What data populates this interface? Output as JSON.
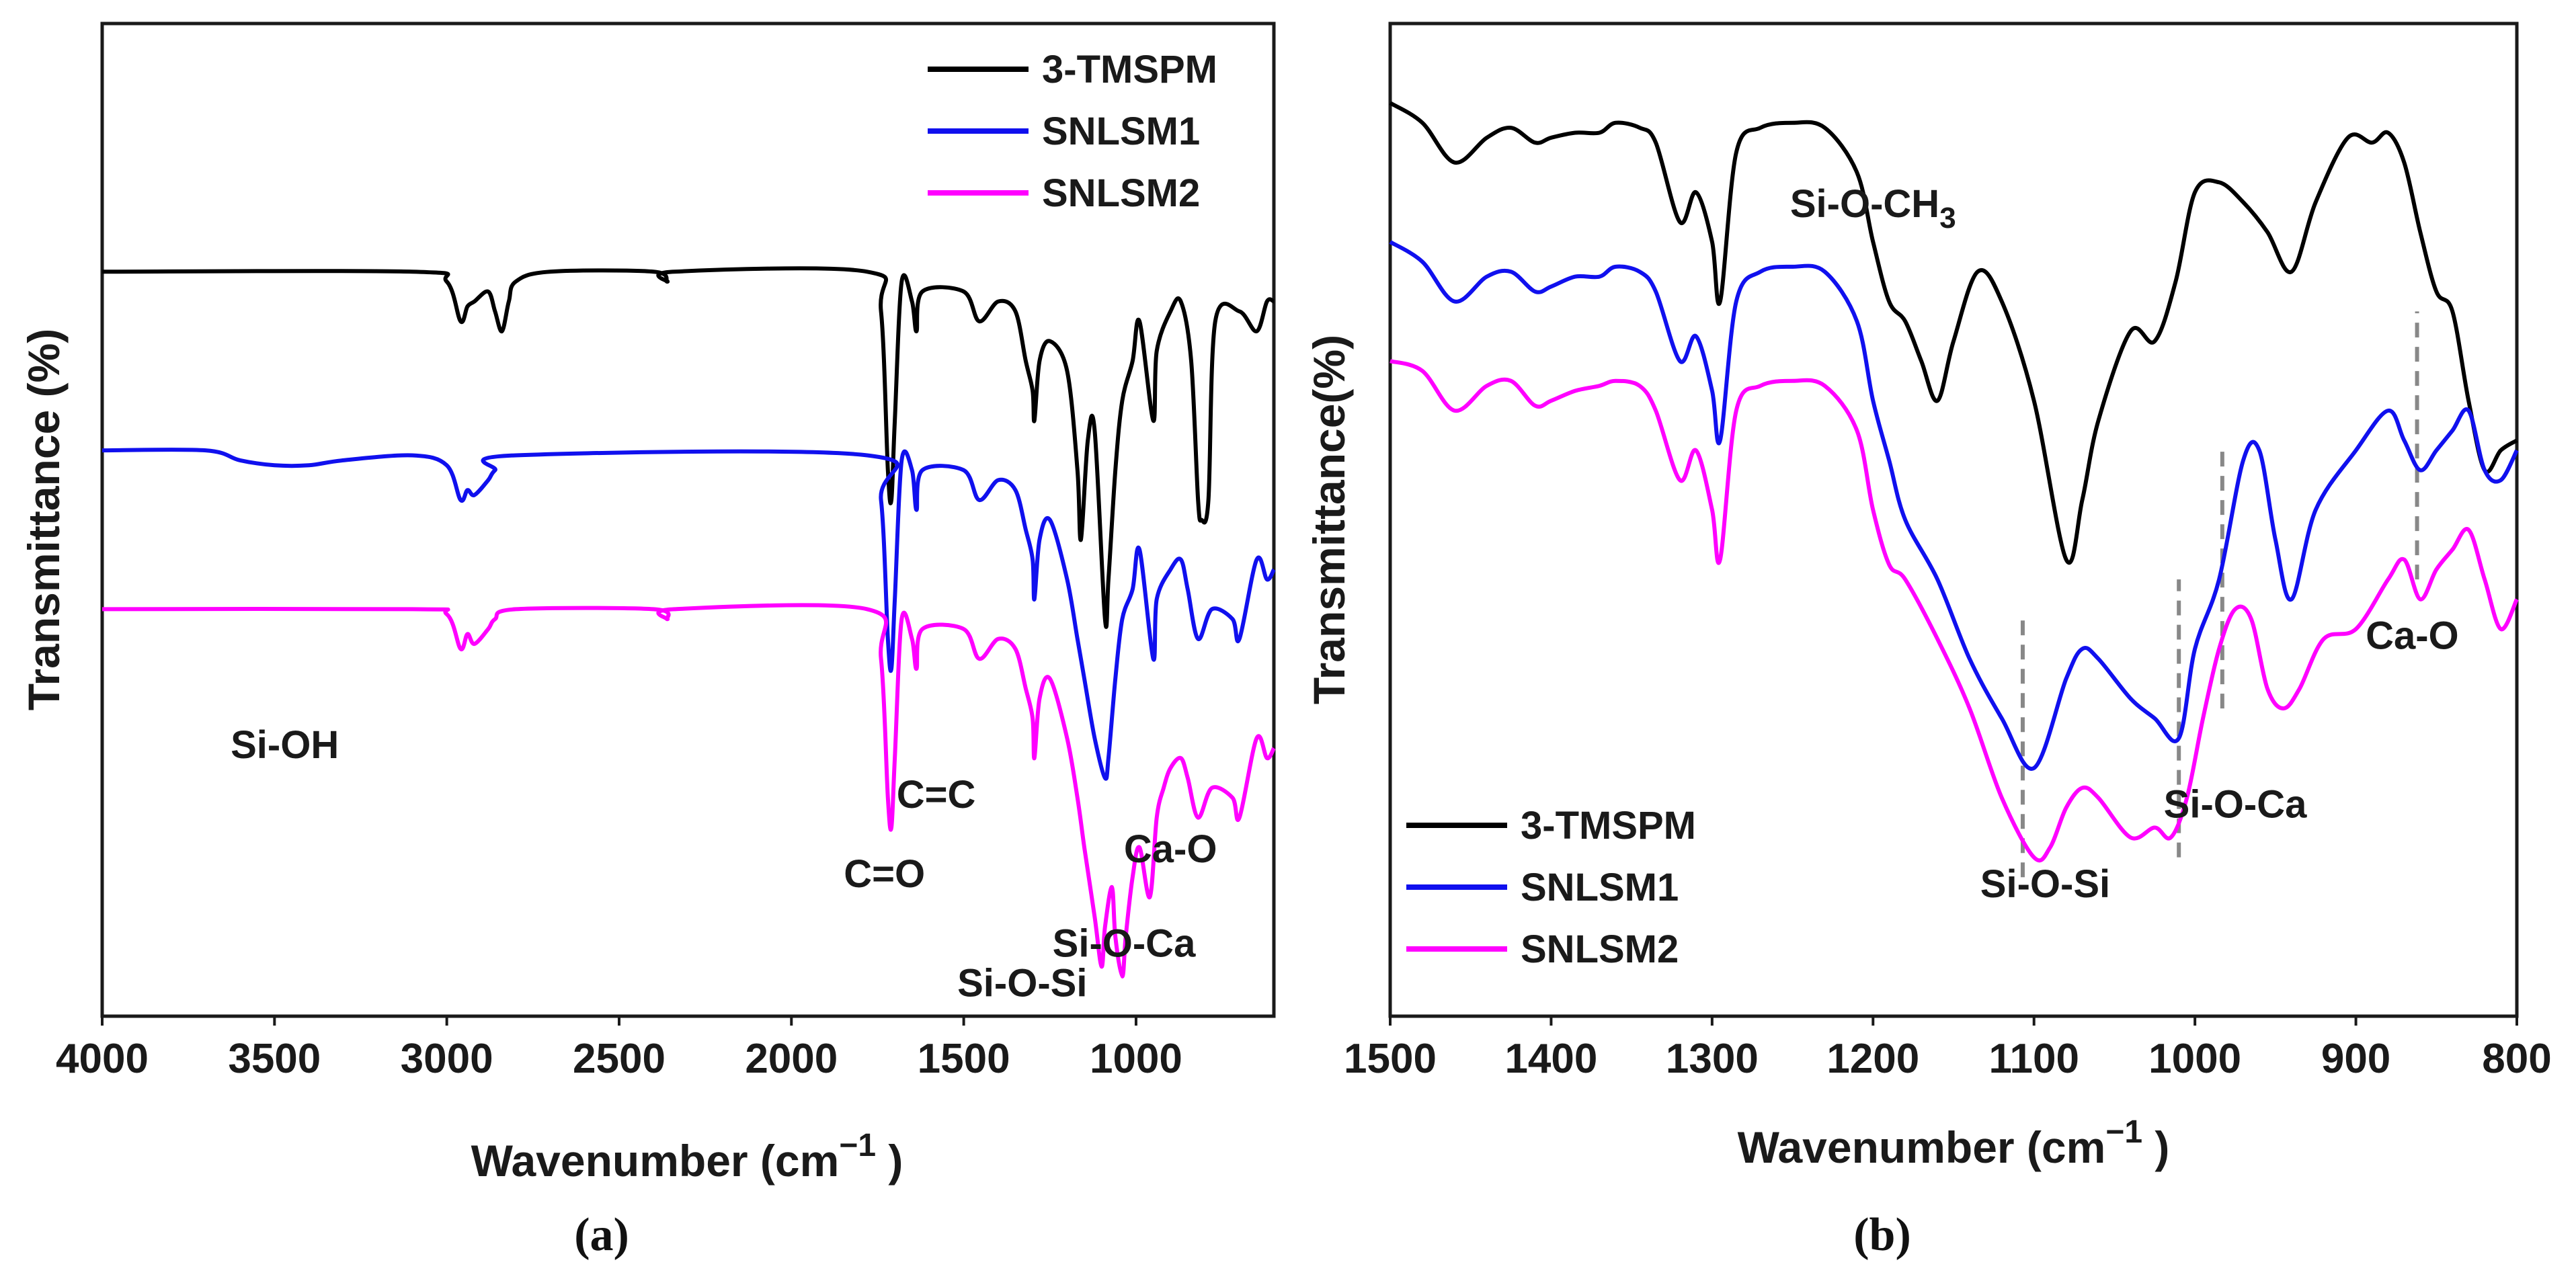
{
  "colors": {
    "3-TMSPM": "#000000",
    "SNLSM1": "#1010ee",
    "SNLSM2": "#ff00ff",
    "axis": "#1a1a1a",
    "guide": "#888888"
  },
  "chart_data": [
    {
      "type": "line",
      "panel_label": "(a)",
      "xlabel": "Wavenumber (cm",
      "xlabel_sup": "−1",
      "xlabel_close": " )",
      "ylabel": "Transmittance (%)",
      "xlim": [
        4000,
        600
      ],
      "xticks": [
        "4000",
        "3500",
        "3000",
        "2500",
        "2000",
        "1500",
        "1000"
      ],
      "xtick_values": [
        4000,
        3500,
        3000,
        2500,
        2000,
        1500,
        1000
      ],
      "yticks_shown": false,
      "legend_position": "top-right",
      "series": [
        {
          "name": "3-TMSPM",
          "baseline": 75,
          "x": [
            4000,
            3100,
            3000,
            2960,
            2940,
            2920,
            2880,
            2860,
            2840,
            2820,
            2800,
            2700,
            2400,
            2360,
            2340,
            1780,
            1740,
            1720,
            1710,
            1700,
            1680,
            1650,
            1637,
            1620,
            1500,
            1455,
            1400,
            1350,
            1320,
            1300,
            1295,
            1280,
            1250,
            1200,
            1170,
            1160,
            1140,
            1120,
            1090,
            1080,
            1060,
            1040,
            1010,
            990,
            950,
            940,
            900,
            870,
            840,
            820,
            810,
            790,
            770,
            700,
            650,
            620,
            600
          ],
          "y": [
            75,
            75,
            74,
            70,
            71.5,
            72,
            73,
            71,
            69,
            72,
            74,
            75,
            75,
            74,
            75,
            75,
            71,
            55,
            52,
            60,
            74,
            72,
            69,
            73,
            73,
            70,
            72,
            71,
            66,
            63,
            60,
            66,
            68,
            65,
            55,
            48,
            58,
            59,
            40,
            44,
            55,
            62,
            66,
            70,
            60,
            67,
            71,
            72,
            66,
            52,
            50,
            52,
            70,
            71,
            69,
            72,
            72
          ]
        },
        {
          "name": "SNLSM1",
          "baseline": 57,
          "x": [
            4000,
            3700,
            3600,
            3500,
            3400,
            3300,
            3100,
            3000,
            2960,
            2940,
            2920,
            2880,
            2860,
            2800,
            1780,
            1740,
            1720,
            1710,
            1700,
            1680,
            1650,
            1637,
            1620,
            1500,
            1455,
            1400,
            1350,
            1320,
            1300,
            1295,
            1280,
            1250,
            1200,
            1170,
            1150,
            1120,
            1090,
            1080,
            1060,
            1040,
            1010,
            990,
            950,
            940,
            900,
            870,
            850,
            820,
            780,
            720,
            700,
            650,
            620,
            600
          ],
          "y": [
            57,
            57,
            56,
            55.5,
            55.5,
            56,
            56.5,
            55.5,
            52,
            53,
            52.5,
            54,
            55,
            56.5,
            56.5,
            52,
            38,
            35,
            42,
            56,
            55,
            51,
            55,
            55,
            52,
            54,
            53,
            49,
            46,
            42,
            48,
            50,
            44,
            38,
            34,
            28,
            24,
            26,
            34,
            40,
            43,
            47,
            36,
            42,
            45,
            46,
            43,
            38,
            41,
            40,
            38,
            46,
            44,
            45
          ]
        },
        {
          "name": "SNLSM2",
          "baseline": 41,
          "x": [
            4000,
            3100,
            3000,
            2960,
            2940,
            2920,
            2880,
            2860,
            2800,
            2400,
            2360,
            2340,
            1780,
            1740,
            1720,
            1710,
            1700,
            1680,
            1650,
            1637,
            1620,
            1500,
            1455,
            1400,
            1350,
            1320,
            1300,
            1295,
            1280,
            1250,
            1200,
            1170,
            1150,
            1120,
            1100,
            1090,
            1070,
            1060,
            1040,
            1030,
            1010,
            990,
            960,
            940,
            920,
            900,
            870,
            850,
            820,
            780,
            720,
            700,
            650,
            620,
            600
          ],
          "y": [
            41,
            41,
            40.5,
            37,
            38.5,
            37.5,
            39,
            40,
            41,
            41,
            40,
            41,
            41,
            36,
            22,
            19,
            26,
            40,
            38,
            35,
            39,
            39,
            36,
            38,
            37,
            33,
            30,
            26,
            32,
            34,
            28,
            22,
            17,
            10,
            5,
            9,
            13,
            8,
            4,
            8,
            14,
            17,
            12,
            20,
            23,
            25,
            26,
            24,
            20,
            23,
            22,
            20,
            28,
            26,
            27
          ]
        }
      ],
      "annotations": [
        {
          "text": "Si-OH",
          "x": 3470,
          "y": 26
        },
        {
          "text": "C=C",
          "x": 1580,
          "y": 21
        },
        {
          "text": "C=O",
          "x": 1730,
          "y": 13
        },
        {
          "text": "Si-O-Si",
          "x": 1330,
          "y": 2
        },
        {
          "text": "Si-O-Ca",
          "x": 1035,
          "y": 6
        },
        {
          "text": "Ca-O",
          "x": 900,
          "y": 15.5
        }
      ]
    },
    {
      "type": "line",
      "panel_label": "(b)",
      "xlabel": "Wavenumber (cm",
      "xlabel_sup": "−1",
      "xlabel_close": " )",
      "ylabel": "Transmittance(%)",
      "xlim": [
        1500,
        800
      ],
      "xticks": [
        "1500",
        "1400",
        "1300",
        "1200",
        "1100",
        "1000",
        "900",
        "800"
      ],
      "xtick_values": [
        1500,
        1400,
        1300,
        1200,
        1100,
        1000,
        900,
        800
      ],
      "yticks_shown": false,
      "legend_position": "bottom-left",
      "series": [
        {
          "name": "3-TMSPM",
          "x": [
            1500,
            1480,
            1460,
            1440,
            1425,
            1410,
            1400,
            1385,
            1370,
            1360,
            1345,
            1335,
            1320,
            1310,
            1300,
            1295,
            1285,
            1270,
            1250,
            1230,
            1210,
            1200,
            1190,
            1180,
            1170,
            1160,
            1150,
            1135,
            1120,
            1100,
            1080,
            1070,
            1060,
            1040,
            1025,
            1012,
            1000,
            985,
            970,
            955,
            940,
            925,
            905,
            890,
            880,
            870,
            860,
            850,
            840,
            830,
            820,
            810,
            800
          ],
          "y": [
            92,
            90,
            86,
            88.5,
            89.5,
            88,
            88.5,
            89,
            89,
            90,
            89.5,
            88,
            80,
            83,
            78,
            72,
            87,
            89.5,
            90,
            89.5,
            85,
            78,
            72,
            70,
            66,
            62,
            68,
            75,
            72,
            62,
            46,
            52,
            60,
            69,
            68,
            74,
            83,
            84,
            82,
            79,
            75,
            82,
            88.5,
            88,
            89,
            86,
            79,
            73,
            71,
            62,
            55,
            57,
            58
          ]
        },
        {
          "name": "SNLSM1",
          "x": [
            1500,
            1480,
            1460,
            1440,
            1425,
            1410,
            1400,
            1385,
            1370,
            1360,
            1345,
            1335,
            1320,
            1310,
            1300,
            1295,
            1285,
            1270,
            1250,
            1230,
            1210,
            1200,
            1190,
            1180,
            1160,
            1140,
            1120,
            1100,
            1080,
            1070,
            1060,
            1040,
            1025,
            1010,
            1000,
            985,
            970,
            960,
            950,
            940,
            925,
            900,
            880,
            870,
            860,
            850,
            840,
            830,
            820,
            810,
            800
          ],
          "y": [
            78,
            76,
            72,
            74.5,
            75,
            73,
            73.5,
            74.5,
            74.5,
            75.5,
            75,
            73,
            66,
            68.5,
            63,
            58,
            72,
            75,
            75.5,
            75,
            70,
            62,
            56,
            50,
            44,
            36,
            30,
            25,
            34,
            37,
            36,
            32,
            30,
            28,
            37,
            44,
            56,
            57,
            48,
            42,
            51,
            57,
            61,
            58,
            55,
            57,
            59,
            61,
            55,
            54,
            57
          ]
        },
        {
          "name": "SNLSM2",
          "x": [
            1500,
            1480,
            1460,
            1440,
            1425,
            1410,
            1400,
            1385,
            1370,
            1360,
            1345,
            1335,
            1320,
            1310,
            1300,
            1295,
            1285,
            1270,
            1250,
            1230,
            1210,
            1200,
            1190,
            1180,
            1160,
            1140,
            1120,
            1100,
            1090,
            1080,
            1070,
            1060,
            1040,
            1025,
            1015,
            1005,
            995,
            985,
            975,
            965,
            955,
            945,
            935,
            920,
            900,
            880,
            870,
            860,
            850,
            840,
            830,
            820,
            810,
            800
          ],
          "y": [
            66,
            65,
            61,
            63.5,
            64,
            61.5,
            62,
            63,
            63.5,
            64,
            63.5,
            61,
            54,
            57,
            51,
            46,
            61,
            63.5,
            64,
            63.5,
            59,
            51,
            45.5,
            44,
            38,
            31,
            22,
            16,
            17,
            21,
            23,
            22,
            18,
            19,
            18,
            22,
            30,
            37,
            41,
            40,
            33,
            31,
            33,
            38,
            39,
            44,
            46,
            42,
            45,
            47,
            49,
            44,
            39,
            42
          ]
        }
      ],
      "guides": [
        {
          "x": 1107,
          "y_from": 14,
          "y_to": 40
        },
        {
          "x": 1010,
          "y_from": 16,
          "y_to": 44
        },
        {
          "x": 983,
          "y_from": 31,
          "y_to": 57
        },
        {
          "x": 862,
          "y_from": 44,
          "y_to": 71
        }
      ],
      "annotations": [
        {
          "text": "Si-O-CH",
          "sub": "3",
          "x": 1200,
          "y": 80.5
        },
        {
          "text": "Si-O-Si",
          "x": 1093,
          "y": 12
        },
        {
          "text": "Si-O-Ca",
          "x": 975,
          "y": 20
        },
        {
          "text": "Ca-O",
          "x": 865,
          "y": 37
        }
      ]
    }
  ]
}
